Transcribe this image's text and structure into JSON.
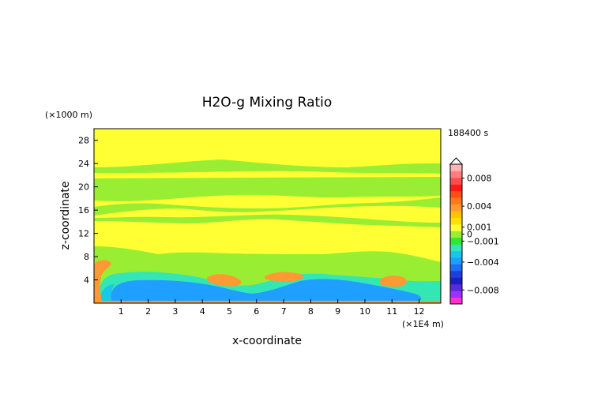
{
  "chart_data": {
    "type": "heatmap",
    "title": "H2O-g Mixing Ratio",
    "xlabel": "x-coordinate",
    "ylabel": "z-coordinate",
    "x_unit": "(×1E4 m)",
    "y_unit": "(×1000 m)",
    "time_label": "188400 s",
    "xlim": [
      0,
      12.8
    ],
    "ylim": [
      0,
      30
    ],
    "x_ticks": [
      1,
      2,
      3,
      4,
      5,
      6,
      7,
      8,
      9,
      10,
      11,
      12
    ],
    "y_ticks": [
      4,
      8,
      12,
      16,
      20,
      24,
      28
    ],
    "colorbar": {
      "range": [
        -0.01,
        0.01
      ],
      "ticks": [
        {
          "value": 0.008,
          "label": "0.008"
        },
        {
          "value": 0.004,
          "label": "0.004"
        },
        {
          "value": 0.001,
          "label": "0.001"
        },
        {
          "value": 0,
          "label": "0"
        },
        {
          "value": -0.001,
          "label": "−0.001"
        },
        {
          "value": -0.004,
          "label": "−0.004"
        },
        {
          "value": -0.008,
          "label": "−0.008"
        }
      ],
      "colors": [
        "#ff33cc",
        "#9933ff",
        "#5c2bd9",
        "#1f1fbf",
        "#1f3fd9",
        "#1f6ff2",
        "#1f9fff",
        "#19c7e6",
        "#33e6b3",
        "#33e633",
        "#99ee33",
        "#ffff33",
        "#ffe000",
        "#ffc400",
        "#ff9933",
        "#ff7a1a",
        "#ff4d1a",
        "#ff1a1a",
        "#ff4d4d",
        "#ff7f7f",
        "#ffb3b3"
      ]
    },
    "colors": {
      "background": "#ffff33",
      "band_positive_small": "#99ee33",
      "negative_moderate": "#1f9fff",
      "negative_small": "#33e6b3",
      "positive_moderate": "#ff9933"
    },
    "regions": [
      {
        "level": "slightly positive (green)",
        "x": [
          0,
          12.8
        ],
        "z": [
          23,
          24.5
        ]
      },
      {
        "level": "slightly positive (green)",
        "x": [
          0,
          12.8
        ],
        "z": [
          18,
          22.5
        ]
      },
      {
        "level": "slightly positive (green)",
        "x": [
          0,
          12.8
        ],
        "z": [
          14,
          17.5
        ]
      },
      {
        "level": "slightly positive (green)",
        "x": [
          0,
          12.8
        ],
        "z": [
          0,
          9
        ]
      },
      {
        "level": "negative (cyan)",
        "x": [
          0.3,
          12.5
        ],
        "z": [
          0.3,
          5
        ]
      },
      {
        "level": "strongly negative (blue)",
        "x": [
          1.5,
          11.5
        ],
        "z": [
          0.5,
          3.5
        ]
      },
      {
        "level": "positive (orange)",
        "x": [
          0,
          0.6
        ],
        "z": [
          0,
          7
        ]
      },
      {
        "level": "positive (orange)",
        "x": [
          4.2,
          5.4
        ],
        "z": [
          3,
          4.7
        ]
      },
      {
        "level": "positive (orange)",
        "x": [
          6.2,
          7.3
        ],
        "z": [
          3.7,
          5
        ]
      },
      {
        "level": "positive (orange)",
        "x": [
          10.5,
          11.6
        ],
        "z": [
          3,
          4.5
        ]
      }
    ]
  }
}
